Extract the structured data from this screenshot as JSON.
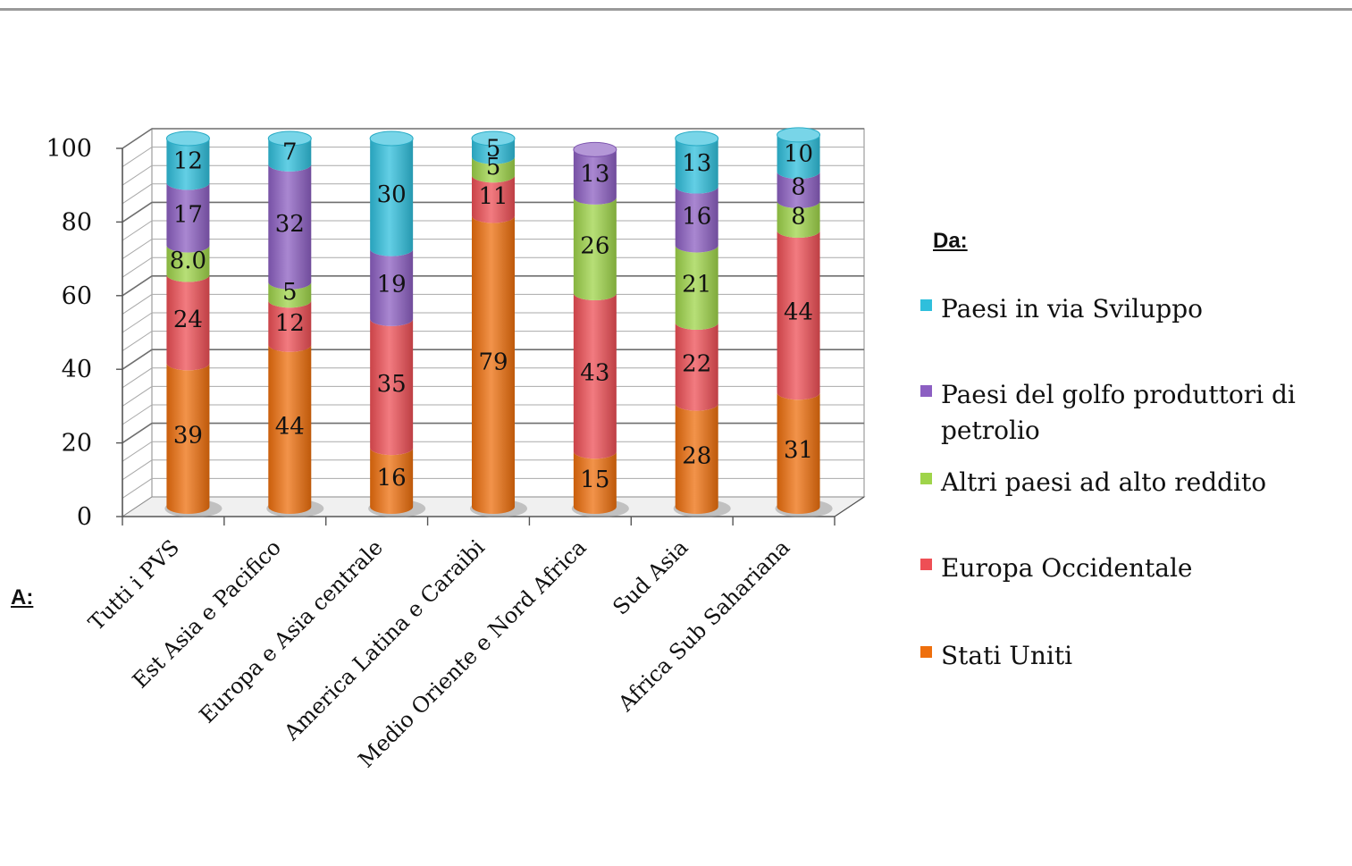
{
  "chart_data": {
    "type": "bar",
    "stacked": true,
    "three_d": true,
    "x_prefix": "A:",
    "categories": [
      "Tutti i PVS",
      "Est Asia e Pacifico",
      "Europa e Asia centrale",
      "America Latina e Caraibi",
      "Medio Oriente e Nord Africa",
      "Sud Asia",
      "Africa Sub Sahariana"
    ],
    "series": [
      {
        "name": "Stati Uniti",
        "color": "#ee6f0d",
        "values": [
          39,
          44,
          16,
          79,
          15,
          28,
          31
        ],
        "labels": [
          "39",
          "44",
          "16",
          "79",
          "15",
          "28",
          "31"
        ]
      },
      {
        "name": "Europa Occidentale",
        "color": "#ee4f55",
        "values": [
          24,
          12,
          35,
          11,
          43,
          22,
          44
        ],
        "labels": [
          "24",
          "12",
          "35",
          "11",
          "43",
          "22",
          "44"
        ]
      },
      {
        "name": "Altri paesi ad alto reddito",
        "color": "#9fd44a",
        "values": [
          8,
          5,
          0,
          5,
          26,
          21,
          8
        ],
        "labels": [
          "8.0",
          "5",
          "",
          "5",
          "26",
          "21",
          "8"
        ]
      },
      {
        "name": "Paesi del golfo produttori di petrolio",
        "color": "#8c5fc2",
        "values": [
          17,
          32,
          19,
          0,
          13,
          16,
          8
        ],
        "labels": [
          "17",
          "32",
          "19",
          "",
          "13",
          "16",
          "8"
        ]
      },
      {
        "name": "Paesi in via Sviluppo",
        "color": "#2fbfdc",
        "values": [
          12,
          7,
          30,
          5,
          0,
          13,
          10
        ],
        "labels": [
          "12",
          "7",
          "30",
          "5",
          "",
          "13",
          "10"
        ]
      }
    ],
    "ylim": [
      0,
      100
    ],
    "y_ticks": [
      "0",
      "20",
      "40",
      "60",
      "80",
      "100"
    ],
    "grid": true,
    "legend": {
      "title": "Da:",
      "placement": "right",
      "order": [
        "Paesi in via Sviluppo",
        "Paesi del golfo produttori di petrolio",
        "Altri paesi ad alto reddito",
        "Europa Occidentale",
        "Stati Uniti"
      ]
    }
  }
}
